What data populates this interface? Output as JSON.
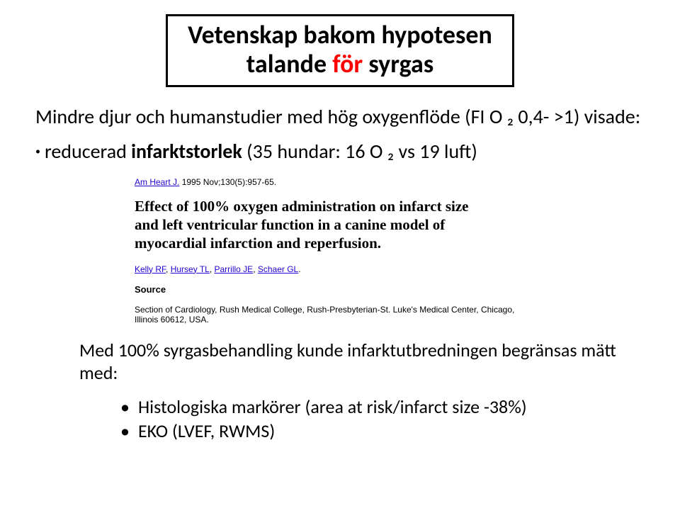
{
  "title": {
    "line1": "Vetenskap bakom hypotesen",
    "line2a": "talande ",
    "line2_highlight": "för",
    "line2b": " syrgas"
  },
  "subtitle": "Mindre djur och humanstudier med hög oxygenflöde (FI O ₂ 0,4- >1) visade:",
  "bullet1_a": "reducerad ",
  "bullet1_b": "infarktstorlek  ",
  "bullet1_c": "(35 hundar: 16 O ₂ vs 19 luft)",
  "citation": {
    "journal_link": "Am Heart J.",
    "journal_rest": " 1995 Nov;130(5):957-65.",
    "paper_title": "Effect of 100% oxygen administration on infarct size and left ventricular function in a canine model of myocardial infarction and reperfusion.",
    "author1": "Kelly RF",
    "author2": "Hursey TL",
    "author3": "Parrillo JE",
    "author4": "Schaer GL",
    "source_label": "Source",
    "source_text": "Section of Cardiology, Rush Medical College, Rush-Presbyterian-St. Luke's Medical Center, Chicago, Illinois 60612, USA."
  },
  "result_line": "Med 100% syrgasbehandling kunde infarktutbredningen begränsas mätt med:",
  "result_bullet1": "Histologiska markörer (area at risk/infarct size -38%)",
  "result_bullet2": "EKO (LVEF, RWMS)"
}
